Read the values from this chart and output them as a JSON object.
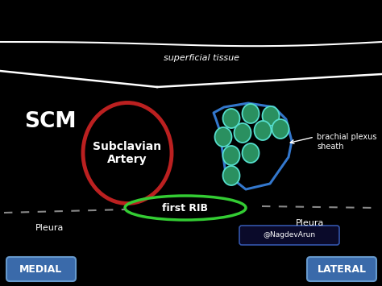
{
  "bg_color": "#000000",
  "title_text": "superficial tissue",
  "title_color": "#ffffff",
  "scm_label": "SCM",
  "subclavian_label": "Subclavian\nArtery",
  "first_rib_label": "first RIB",
  "brachial_sheath_label": "brachial plexus\nsheath",
  "pleura_left_label": "Pleura",
  "pleura_right_label": "Pleura",
  "watermark": "@NagdevArun",
  "medial_label": "MEDIAL",
  "lateral_label": "LATERAL",
  "artery_color": "#bb2020",
  "sheath_color": "#3377cc",
  "nerve_fill": "#2a9060",
  "nerve_border": "#55ddcc",
  "rib_color": "#33cc33",
  "tissue_line_color": "#ffffff",
  "pleura_color": "#888888",
  "button_color": "#3a6aaa",
  "text_color": "#ffffff"
}
